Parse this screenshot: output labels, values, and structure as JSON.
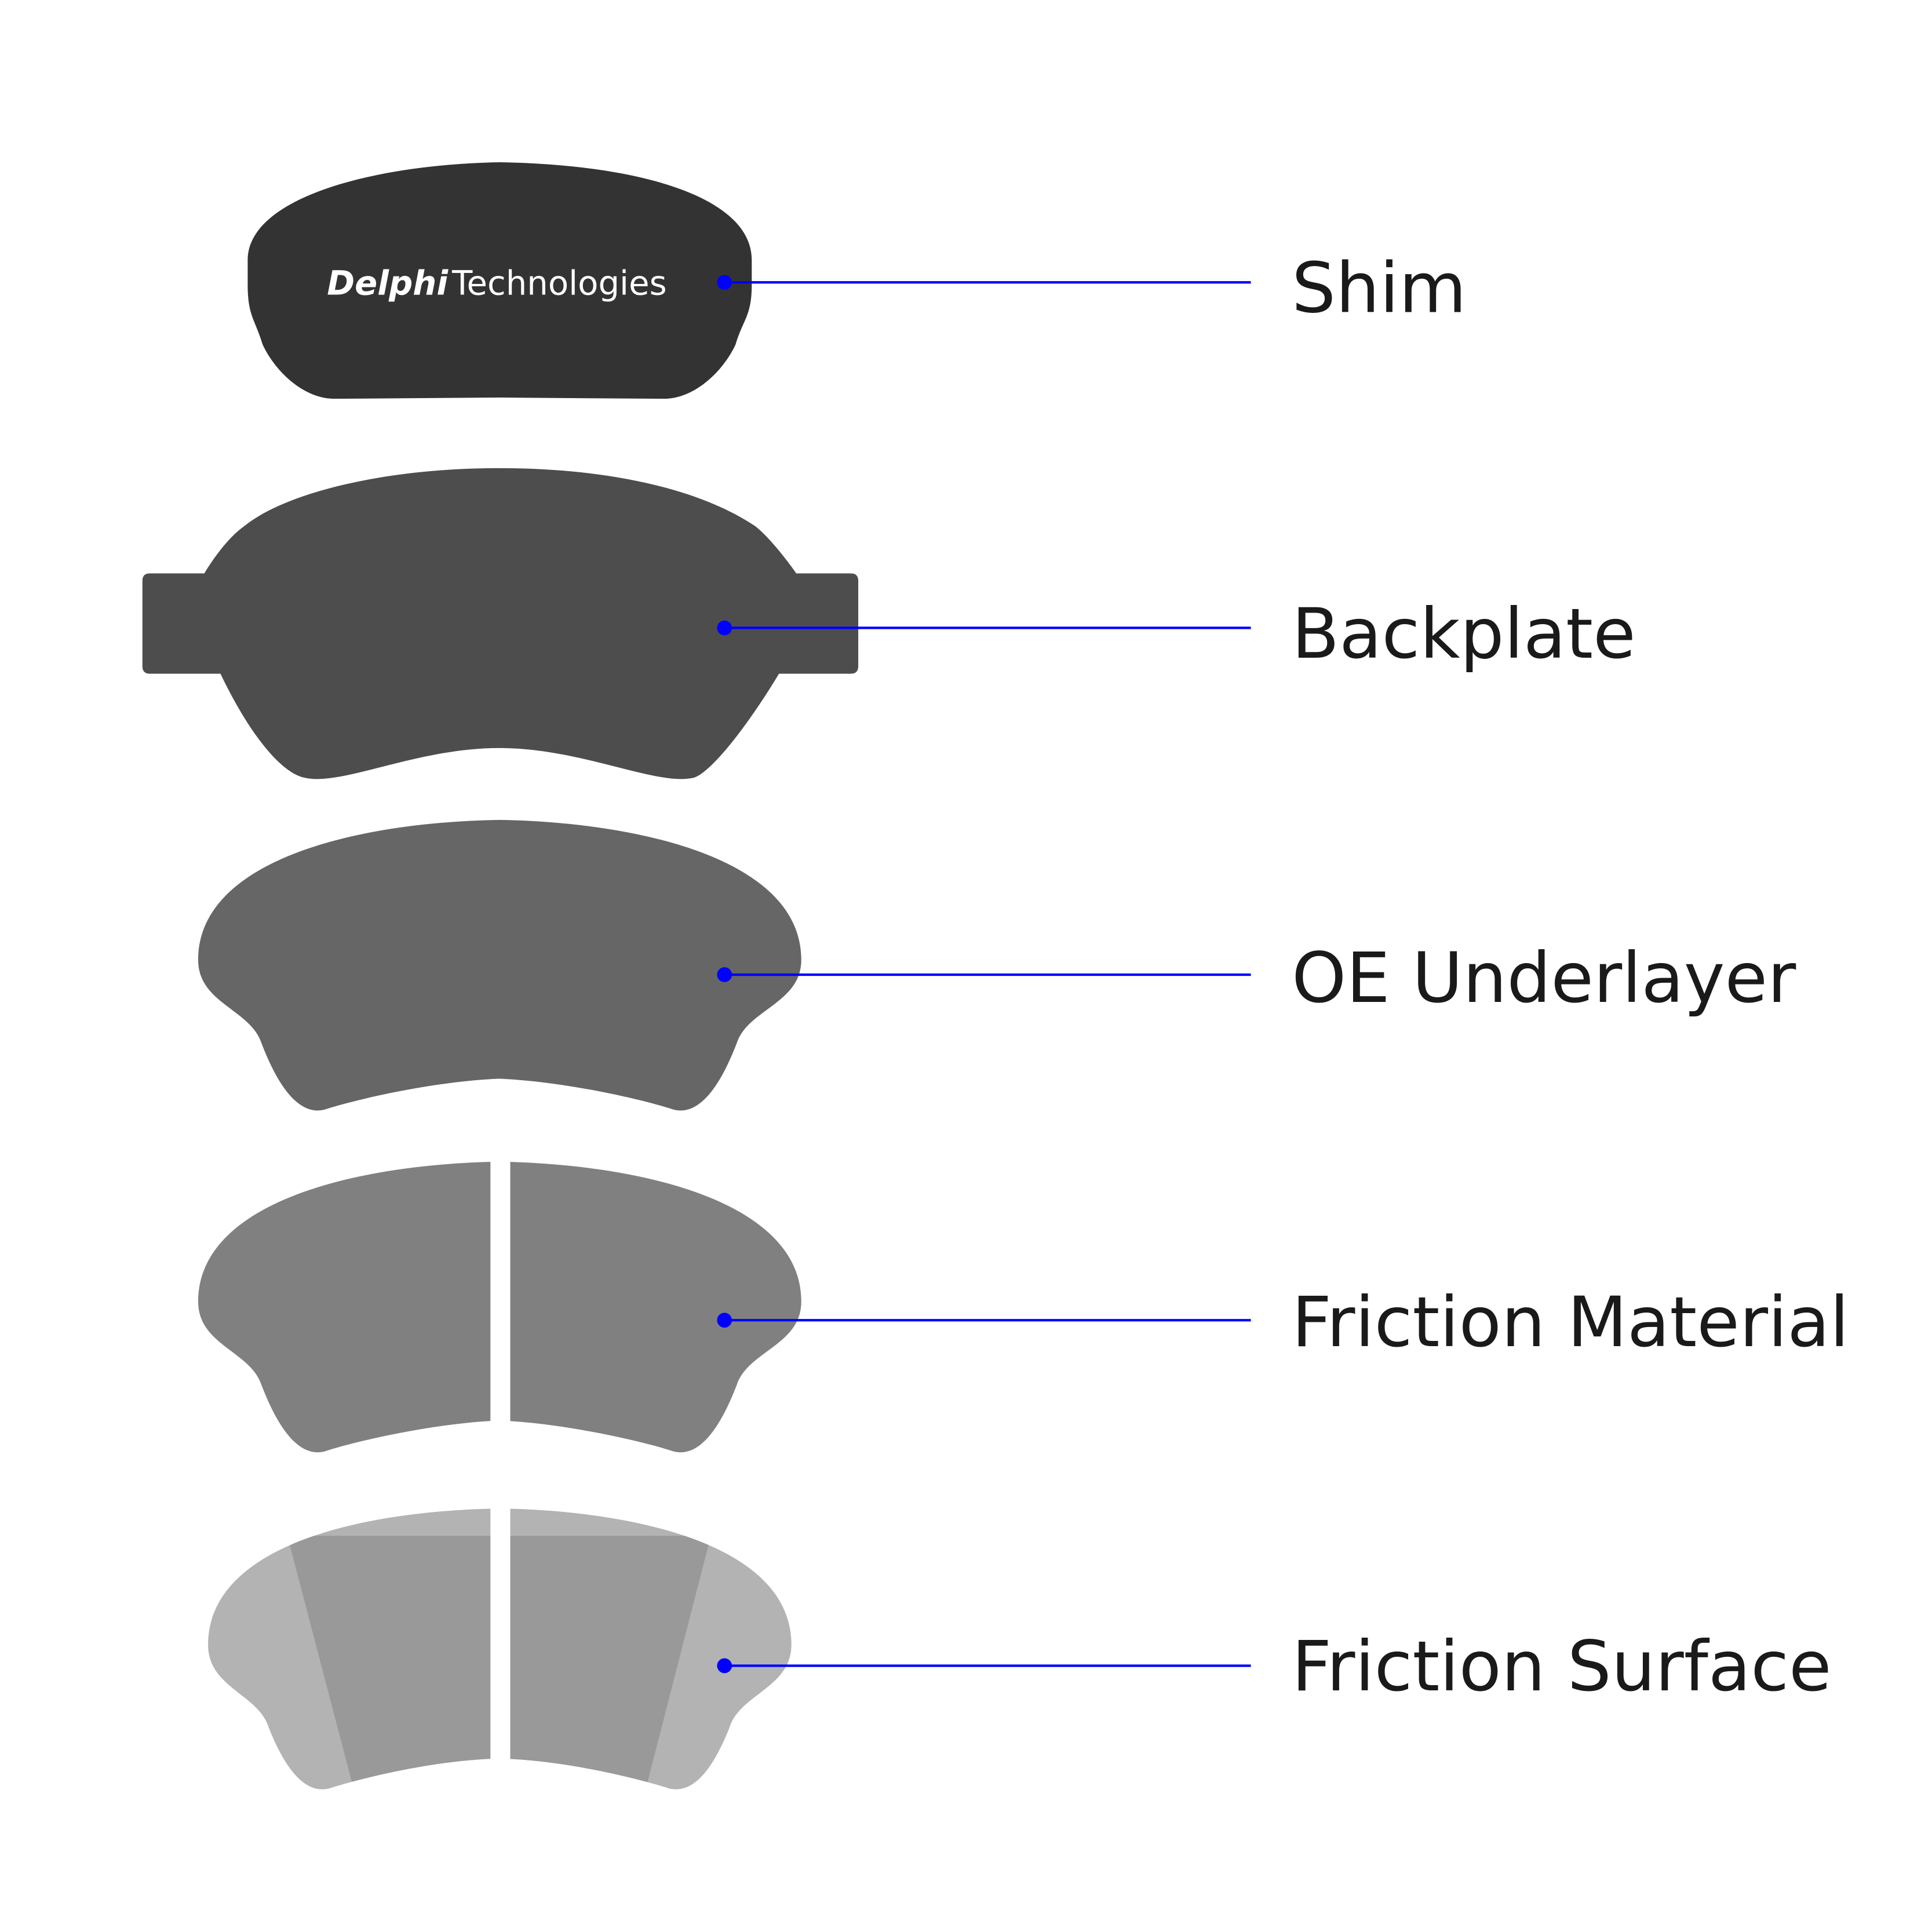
{
  "logo": {
    "brand_bold": "Delphi",
    "brand_regular": "Technologies"
  },
  "layers": [
    {
      "label": "Shim",
      "color": "#333333"
    },
    {
      "label": "Backplate",
      "color": "#4d4d4d"
    },
    {
      "label": "OE Underlayer",
      "color": "#666666"
    },
    {
      "label": "Friction Material",
      "color": "#808080"
    },
    {
      "label": "Friction Surface",
      "color": "#999999",
      "edge_color": "#b3b3b3"
    }
  ],
  "leader_color": "#0000ff"
}
